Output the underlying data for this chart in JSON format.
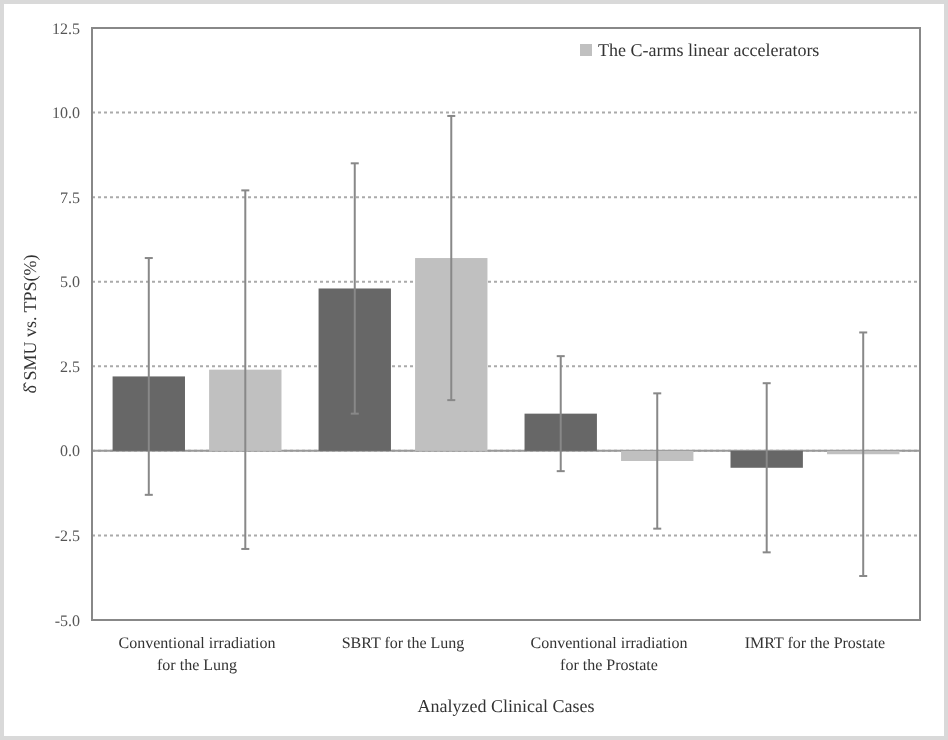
{
  "chart_data": {
    "type": "bar",
    "xlabel": "Analyzed  Clinical Cases",
    "ylabel": "δ̂ SMU vs. TPS(%)",
    "categories": [
      "Conventional irradiation for the Lung",
      "SBRT for the Lung",
      "Conventional irradiation for the Prostate",
      "IMRT for the Prostate"
    ],
    "series": [
      {
        "color": "#676767",
        "values": [
          2.2,
          4.8,
          1.1,
          -0.5
        ],
        "errors": [
          [
            -1.3,
            5.7
          ],
          [
            1.1,
            8.5
          ],
          [
            -0.6,
            2.8
          ],
          [
            -3.0,
            2.0
          ]
        ]
      },
      {
        "name": "The C-arms linear accelerators",
        "color": "#c0c0c0",
        "values": [
          2.4,
          5.7,
          -0.3,
          -0.1
        ],
        "errors": [
          [
            -2.9,
            7.7
          ],
          [
            1.5,
            9.9
          ],
          [
            -2.3,
            1.7
          ],
          [
            -3.7,
            3.5
          ]
        ]
      }
    ],
    "ylim": [
      -5,
      12.5
    ],
    "yticks": [
      {
        "value": -5,
        "label": "-5.0"
      },
      {
        "value": -2.5,
        "label": "-2.5"
      },
      {
        "value": 0,
        "label": "0.0"
      },
      {
        "value": 2.5,
        "label": "2.5"
      },
      {
        "value": 5,
        "label": "5.0"
      },
      {
        "value": 7.5,
        "label": "7.5"
      },
      {
        "value": 10,
        "label": "10.0"
      },
      {
        "value": 12.5,
        "label": "12.5"
      }
    ],
    "grid": "y",
    "legend": "top right"
  }
}
